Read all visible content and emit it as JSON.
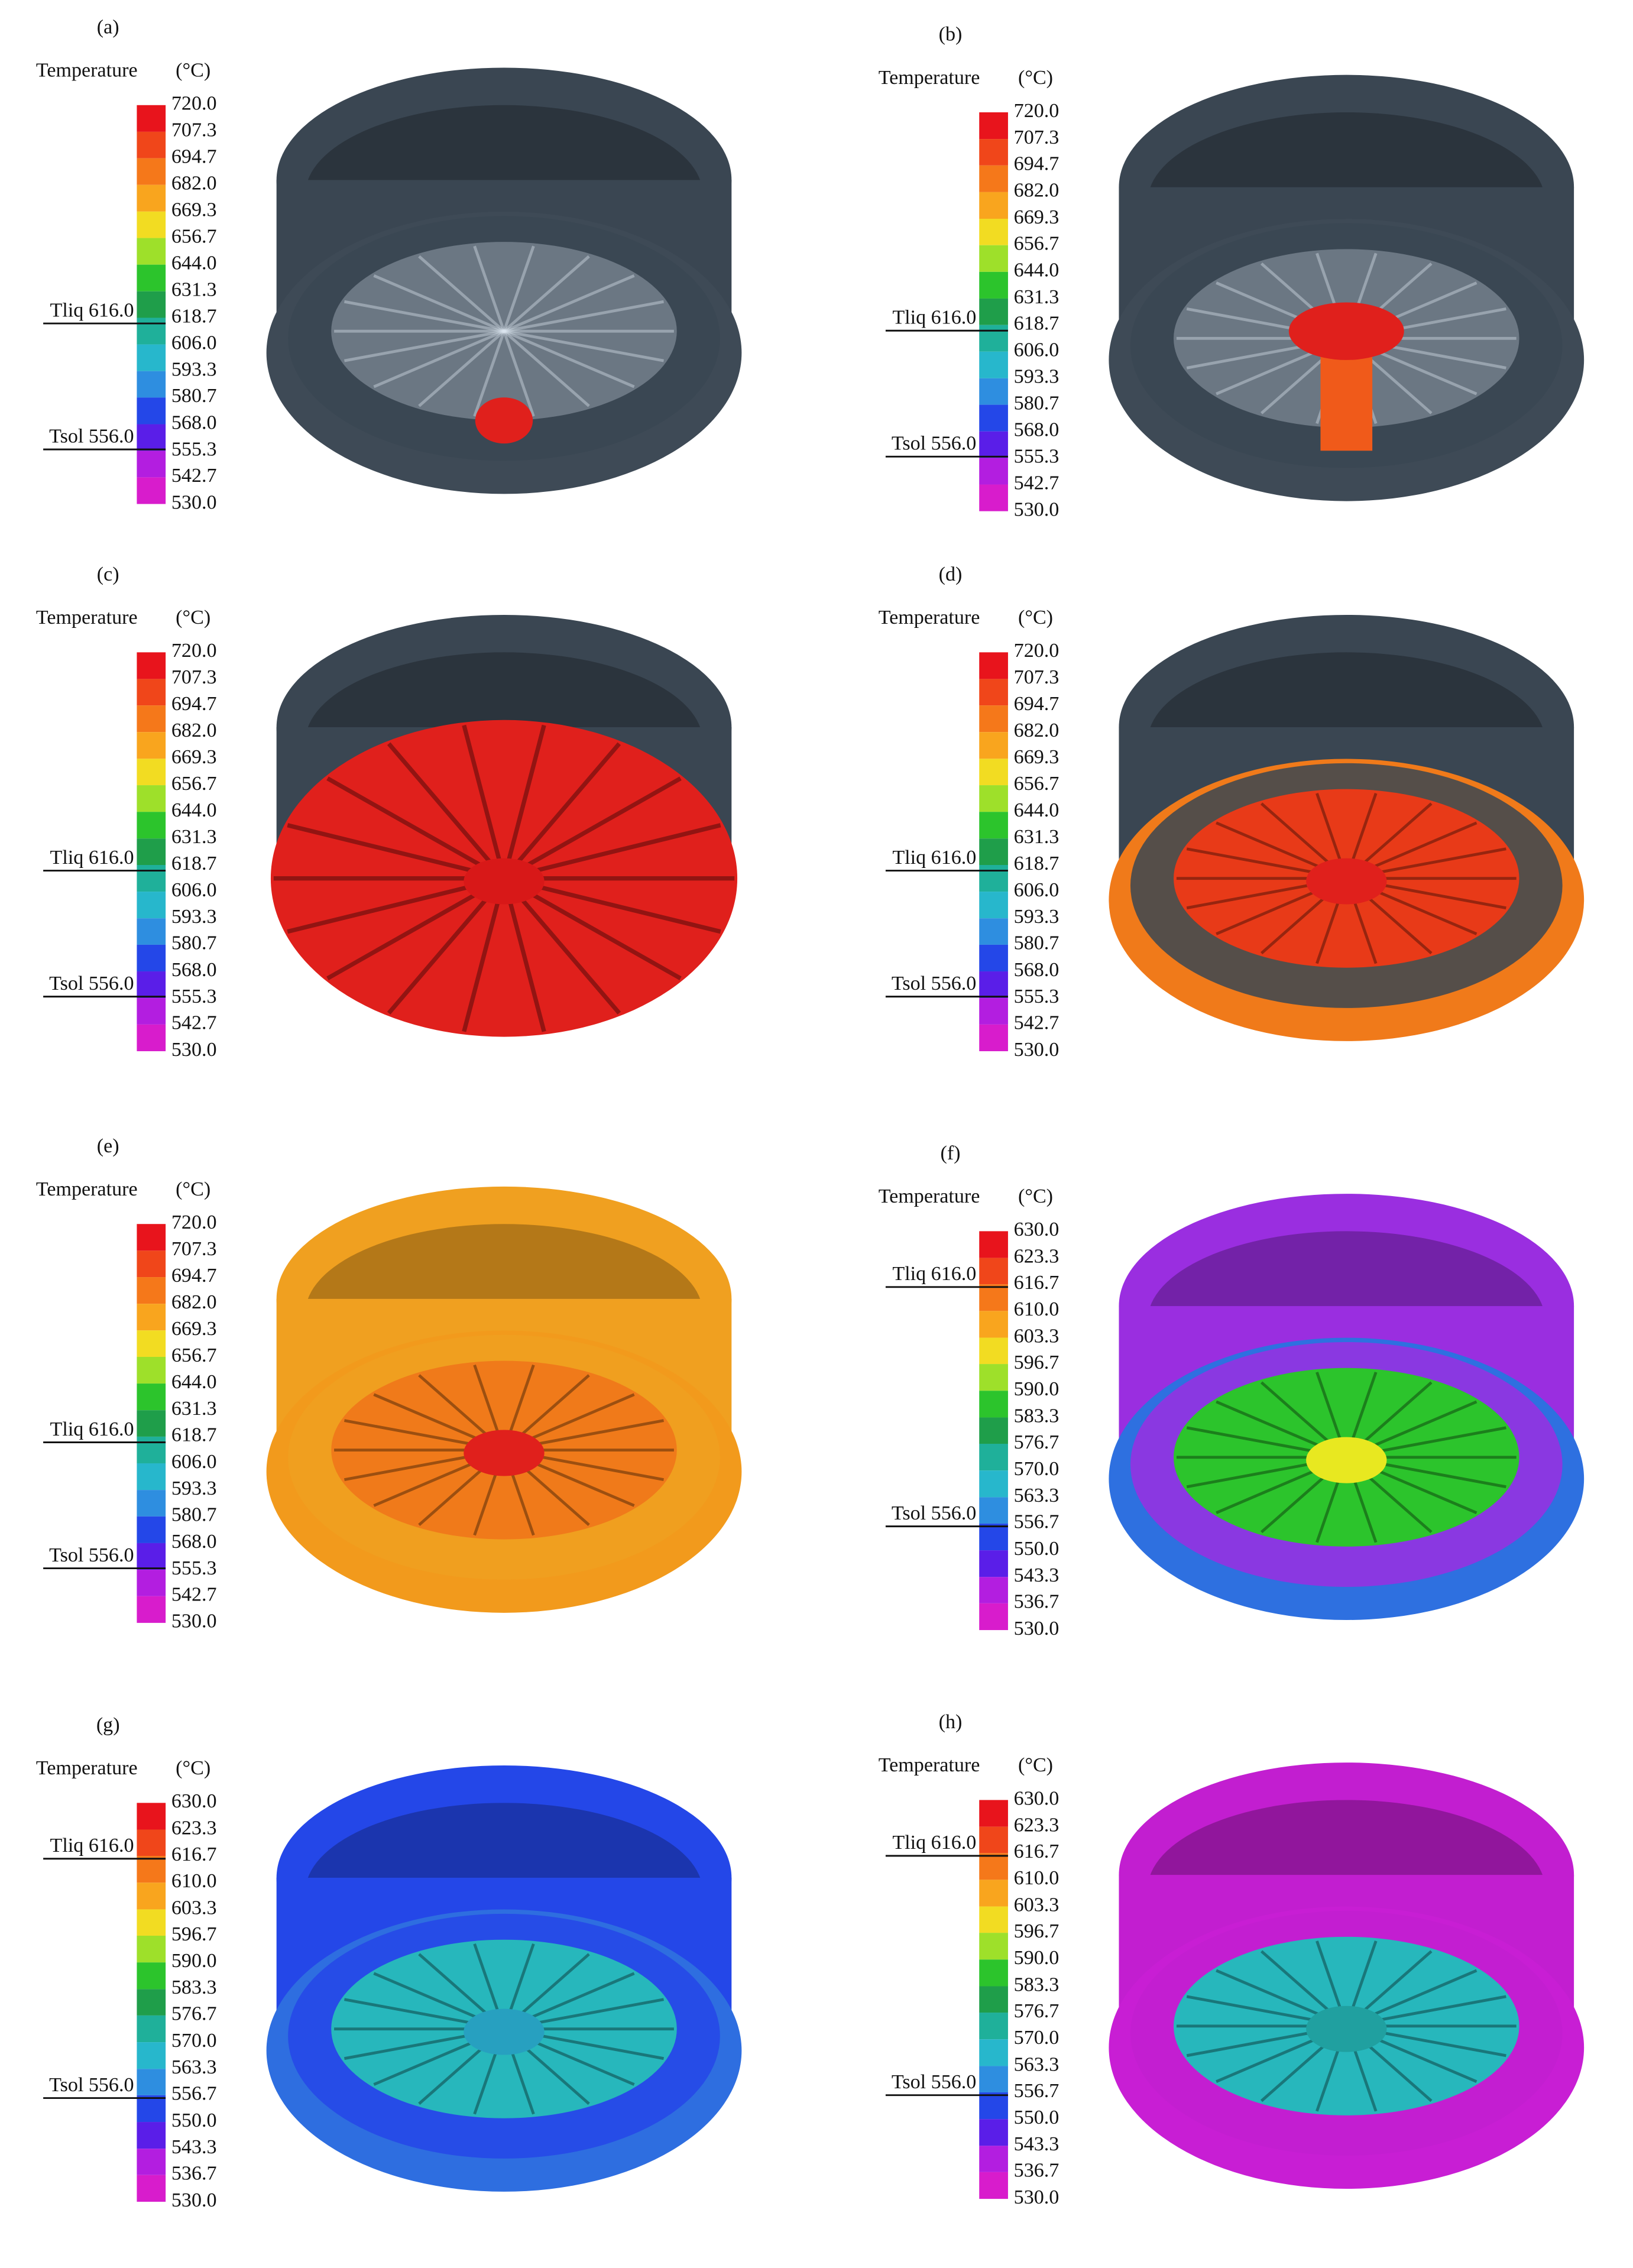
{
  "colorbar_colors": [
    "#e8141c",
    "#f0461a",
    "#f5781a",
    "#f9a51e",
    "#f2dc22",
    "#9ee02a",
    "#2cc42c",
    "#1f9e4a",
    "#1fb09a",
    "#27b7cc",
    "#2e8ee0",
    "#2447e8",
    "#5a1ee8",
    "#b31ee0",
    "#d81ccc"
  ],
  "panels": [
    {
      "label": "(a)",
      "legend_title": "Temperature",
      "legend_unit": "(°C)",
      "ticks": [
        {
          "value": 720,
          "label": "720.0"
        },
        {
          "value": 707.3,
          "label": "707.3"
        },
        {
          "value": 694.7,
          "label": "694.7"
        },
        {
          "value": 682,
          "label": "682.0"
        },
        {
          "value": 669.3,
          "label": "669.3"
        },
        {
          "value": 656.7,
          "label": "656.7"
        },
        {
          "value": 644,
          "label": "644.0"
        },
        {
          "value": 631.3,
          "label": "631.3"
        },
        {
          "value": 618.7,
          "label": "618.7"
        },
        {
          "value": 606,
          "label": "606.0"
        },
        {
          "value": 593.3,
          "label": "593.3"
        },
        {
          "value": 580.7,
          "label": "580.7"
        },
        {
          "value": 568,
          "label": "568.0"
        },
        {
          "value": 555.3,
          "label": "555.3"
        },
        {
          "value": 542.7,
          "label": "542.7"
        },
        {
          "value": 530,
          "label": "530.0"
        }
      ],
      "markers": [
        {
          "value": 616,
          "label": "Tliq 616.0"
        },
        {
          "value": 556,
          "label": "Tsol 556.0"
        }
      ]
    },
    {
      "label": "(b)",
      "legend_title": "Temperature",
      "legend_unit": "(°C)",
      "ticks": [
        {
          "value": 720,
          "label": "720.0"
        },
        {
          "value": 707.3,
          "label": "707.3"
        },
        {
          "value": 694.7,
          "label": "694.7"
        },
        {
          "value": 682,
          "label": "682.0"
        },
        {
          "value": 669.3,
          "label": "669.3"
        },
        {
          "value": 656.7,
          "label": "656.7"
        },
        {
          "value": 644,
          "label": "644.0"
        },
        {
          "value": 631.3,
          "label": "631.3"
        },
        {
          "value": 618.7,
          "label": "618.7"
        },
        {
          "value": 606,
          "label": "606.0"
        },
        {
          "value": 593.3,
          "label": "593.3"
        },
        {
          "value": 580.7,
          "label": "580.7"
        },
        {
          "value": 568,
          "label": "568.0"
        },
        {
          "value": 555.3,
          "label": "555.3"
        },
        {
          "value": 542.7,
          "label": "542.7"
        },
        {
          "value": 530,
          "label": "530.0"
        }
      ],
      "markers": [
        {
          "value": 616,
          "label": "Tliq 616.0"
        },
        {
          "value": 556,
          "label": "Tsol 556.0"
        }
      ]
    },
    {
      "label": "(c)",
      "legend_title": "Temperature",
      "legend_unit": "(°C)",
      "ticks": [
        {
          "value": 720,
          "label": "720.0"
        },
        {
          "value": 707.3,
          "label": "707.3"
        },
        {
          "value": 694.7,
          "label": "694.7"
        },
        {
          "value": 682,
          "label": "682.0"
        },
        {
          "value": 669.3,
          "label": "669.3"
        },
        {
          "value": 656.7,
          "label": "656.7"
        },
        {
          "value": 644,
          "label": "644.0"
        },
        {
          "value": 631.3,
          "label": "631.3"
        },
        {
          "value": 618.7,
          "label": "618.7"
        },
        {
          "value": 606,
          "label": "606.0"
        },
        {
          "value": 593.3,
          "label": "593.3"
        },
        {
          "value": 580.7,
          "label": "580.7"
        },
        {
          "value": 568,
          "label": "568.0"
        },
        {
          "value": 555.3,
          "label": "555.3"
        },
        {
          "value": 542.7,
          "label": "542.7"
        },
        {
          "value": 530,
          "label": "530.0"
        }
      ],
      "markers": [
        {
          "value": 616,
          "label": "Tliq 616.0"
        },
        {
          "value": 556,
          "label": "Tsol 556.0"
        }
      ]
    },
    {
      "label": "(d)",
      "legend_title": "Temperature",
      "legend_unit": "(°C)",
      "ticks": [
        {
          "value": 720,
          "label": "720.0"
        },
        {
          "value": 707.3,
          "label": "707.3"
        },
        {
          "value": 694.7,
          "label": "694.7"
        },
        {
          "value": 682,
          "label": "682.0"
        },
        {
          "value": 669.3,
          "label": "669.3"
        },
        {
          "value": 656.7,
          "label": "656.7"
        },
        {
          "value": 644,
          "label": "644.0"
        },
        {
          "value": 631.3,
          "label": "631.3"
        },
        {
          "value": 618.7,
          "label": "618.7"
        },
        {
          "value": 606,
          "label": "606.0"
        },
        {
          "value": 593.3,
          "label": "593.3"
        },
        {
          "value": 580.7,
          "label": "580.7"
        },
        {
          "value": 568,
          "label": "568.0"
        },
        {
          "value": 555.3,
          "label": "555.3"
        },
        {
          "value": 542.7,
          "label": "542.7"
        },
        {
          "value": 530,
          "label": "530.0"
        }
      ],
      "markers": [
        {
          "value": 616,
          "label": "Tliq 616.0"
        },
        {
          "value": 556,
          "label": "Tsol 556.0"
        }
      ]
    },
    {
      "label": "(e)",
      "legend_title": "Temperature",
      "legend_unit": "(°C)",
      "ticks": [
        {
          "value": 720,
          "label": "720.0"
        },
        {
          "value": 707.3,
          "label": "707.3"
        },
        {
          "value": 694.7,
          "label": "694.7"
        },
        {
          "value": 682,
          "label": "682.0"
        },
        {
          "value": 669.3,
          "label": "669.3"
        },
        {
          "value": 656.7,
          "label": "656.7"
        },
        {
          "value": 644,
          "label": "644.0"
        },
        {
          "value": 631.3,
          "label": "631.3"
        },
        {
          "value": 618.7,
          "label": "618.7"
        },
        {
          "value": 606,
          "label": "606.0"
        },
        {
          "value": 593.3,
          "label": "593.3"
        },
        {
          "value": 580.7,
          "label": "580.7"
        },
        {
          "value": 568,
          "label": "568.0"
        },
        {
          "value": 555.3,
          "label": "555.3"
        },
        {
          "value": 542.7,
          "label": "542.7"
        },
        {
          "value": 530,
          "label": "530.0"
        }
      ],
      "markers": [
        {
          "value": 616,
          "label": "Tliq 616.0"
        },
        {
          "value": 556,
          "label": "Tsol 556.0"
        }
      ]
    },
    {
      "label": "(f)",
      "legend_title": "Temperature",
      "legend_unit": "(°C)",
      "ticks": [
        {
          "value": 630,
          "label": "630.0"
        },
        {
          "value": 623.3,
          "label": "623.3"
        },
        {
          "value": 616.7,
          "label": "616.7"
        },
        {
          "value": 610,
          "label": "610.0"
        },
        {
          "value": 603.3,
          "label": "603.3"
        },
        {
          "value": 596.7,
          "label": "596.7"
        },
        {
          "value": 590,
          "label": "590.0"
        },
        {
          "value": 583.3,
          "label": "583.3"
        },
        {
          "value": 576.7,
          "label": "576.7"
        },
        {
          "value": 570,
          "label": "570.0"
        },
        {
          "value": 563.3,
          "label": "563.3"
        },
        {
          "value": 556.7,
          "label": "556.7"
        },
        {
          "value": 550,
          "label": "550.0"
        },
        {
          "value": 543.3,
          "label": "543.3"
        },
        {
          "value": 536.7,
          "label": "536.7"
        },
        {
          "value": 530,
          "label": "530.0"
        }
      ],
      "markers": [
        {
          "value": 616,
          "label": "Tliq 616.0"
        },
        {
          "value": 556,
          "label": "Tsol 556.0"
        }
      ]
    },
    {
      "label": "(g)",
      "legend_title": "Temperature",
      "legend_unit": "(°C)",
      "ticks": [
        {
          "value": 630,
          "label": "630.0"
        },
        {
          "value": 623.3,
          "label": "623.3"
        },
        {
          "value": 616.7,
          "label": "616.7"
        },
        {
          "value": 610,
          "label": "610.0"
        },
        {
          "value": 603.3,
          "label": "603.3"
        },
        {
          "value": 596.7,
          "label": "596.7"
        },
        {
          "value": 590,
          "label": "590.0"
        },
        {
          "value": 583.3,
          "label": "583.3"
        },
        {
          "value": 576.7,
          "label": "576.7"
        },
        {
          "value": 570,
          "label": "570.0"
        },
        {
          "value": 563.3,
          "label": "563.3"
        },
        {
          "value": 556.7,
          "label": "556.7"
        },
        {
          "value": 550,
          "label": "550.0"
        },
        {
          "value": 543.3,
          "label": "543.3"
        },
        {
          "value": 536.7,
          "label": "536.7"
        },
        {
          "value": 530,
          "label": "530.0"
        }
      ],
      "markers": [
        {
          "value": 616,
          "label": "Tliq 616.0"
        },
        {
          "value": 556,
          "label": "Tsol 556.0"
        }
      ]
    },
    {
      "label": "(h)",
      "legend_title": "Temperature",
      "legend_unit": "(°C)",
      "ticks": [
        {
          "value": 630,
          "label": "630.0"
        },
        {
          "value": 623.3,
          "label": "623.3"
        },
        {
          "value": 616.7,
          "label": "616.7"
        },
        {
          "value": 610,
          "label": "610.0"
        },
        {
          "value": 603.3,
          "label": "603.3"
        },
        {
          "value": 596.7,
          "label": "596.7"
        },
        {
          "value": 590,
          "label": "590.0"
        },
        {
          "value": 583.3,
          "label": "583.3"
        },
        {
          "value": 576.7,
          "label": "576.7"
        },
        {
          "value": 570,
          "label": "570.0"
        },
        {
          "value": 563.3,
          "label": "563.3"
        },
        {
          "value": 556.7,
          "label": "556.7"
        },
        {
          "value": 550,
          "label": "550.0"
        },
        {
          "value": 543.3,
          "label": "543.3"
        },
        {
          "value": 536.7,
          "label": "536.7"
        },
        {
          "value": 530,
          "label": "530.0"
        }
      ],
      "markers": [
        {
          "value": 616,
          "label": "Tliq 616.0"
        },
        {
          "value": 556,
          "label": "Tsol 556.0"
        }
      ]
    }
  ]
}
